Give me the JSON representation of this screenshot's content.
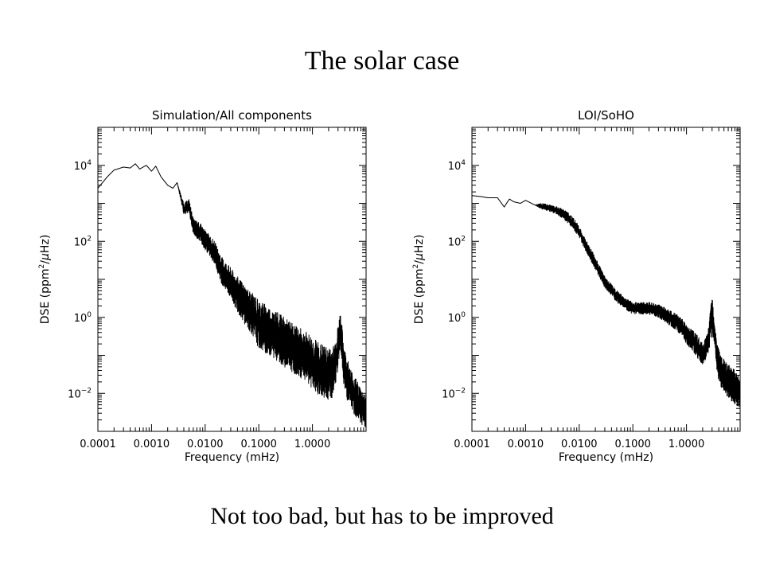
{
  "slide": {
    "title": "The solar case",
    "caption": "Not too bad, but has to be improved"
  },
  "chart_data": [
    {
      "type": "line",
      "title": "Simulation/All components",
      "xlabel": "Frequency (mHz)",
      "ylabel_base": "DSE (ppm",
      "ylabel_sup": "2",
      "ylabel_tail": "/",
      "ylabel_mu": "μ",
      "ylabel_end": "Hz)",
      "xscale": "log",
      "yscale": "log",
      "xlim": [
        0.0001,
        10
      ],
      "ylim": [
        0.001,
        100000
      ],
      "grid": false,
      "x_ticks": [
        {
          "value": 0.0001,
          "label": "0.0001"
        },
        {
          "value": 0.001,
          "label": "0.0010"
        },
        {
          "value": 0.01,
          "label": "0.0100"
        },
        {
          "value": 0.1,
          "label": "0.1000"
        },
        {
          "value": 1,
          "label": "1.0000"
        }
      ],
      "y_ticks": [
        {
          "value": 10000,
          "base": "10",
          "exp": "4"
        },
        {
          "value": 100,
          "base": "10",
          "exp": "2"
        },
        {
          "value": 1,
          "base": "10",
          "exp": "0"
        },
        {
          "value": 0.01,
          "base": "10",
          "exp": "−2"
        }
      ],
      "series": [
        {
          "x": [
            0.0001,
            0.00015,
            0.0002,
            0.0003,
            0.0004,
            0.0005,
            0.0006,
            0.0008,
            0.001,
            0.0012,
            0.0015,
            0.002,
            0.0025,
            0.003,
            0.004,
            0.005,
            0.006,
            0.008,
            0.01,
            0.015,
            0.02,
            0.03,
            0.05,
            0.08,
            0.1,
            0.2,
            0.3,
            0.5,
            0.8,
            1,
            1.5,
            2,
            2.5,
            3,
            3.3,
            3.6,
            4,
            5,
            7,
            10
          ],
          "y": [
            2500,
            5000,
            7500,
            9000,
            8500,
            11000,
            8000,
            10000,
            7000,
            9500,
            5000,
            3000,
            2500,
            3500,
            1000,
            1300,
            400,
            300,
            200,
            100,
            40,
            20,
            8,
            4,
            3,
            1.5,
            1,
            0.6,
            0.4,
            0.3,
            0.2,
            0.15,
            0.2,
            0.6,
            1.5,
            0.5,
            0.15,
            0.05,
            0.02,
            0.008
          ],
          "y_low": [
            2500,
            5000,
            7500,
            9000,
            8500,
            11000,
            8000,
            10000,
            7000,
            9500,
            5000,
            3000,
            2500,
            3500,
            500,
            600,
            150,
            100,
            60,
            25,
            8,
            3,
            0.8,
            0.3,
            0.15,
            0.08,
            0.05,
            0.03,
            0.02,
            0.012,
            0.008,
            0.006,
            0.008,
            0.04,
            0.2,
            0.04,
            0.01,
            0.004,
            0.002,
            0.001
          ]
        }
      ]
    },
    {
      "type": "line",
      "title": "LOI/SoHO",
      "xlabel": "Frequency (mHz)",
      "ylabel_base": "DSE (ppm",
      "ylabel_sup": "2",
      "ylabel_tail": "/",
      "ylabel_mu": "μ",
      "ylabel_end": "Hz)",
      "xscale": "log",
      "yscale": "log",
      "xlim": [
        0.0001,
        10
      ],
      "ylim": [
        0.001,
        100000
      ],
      "grid": false,
      "x_ticks": [
        {
          "value": 0.0001,
          "label": "0.0001"
        },
        {
          "value": 0.001,
          "label": "0.0010"
        },
        {
          "value": 0.01,
          "label": "0.0100"
        },
        {
          "value": 0.1,
          "label": "0.1000"
        },
        {
          "value": 1,
          "label": "1.0000"
        }
      ],
      "y_ticks": [
        {
          "value": 10000,
          "base": "10",
          "exp": "4"
        },
        {
          "value": 100,
          "base": "10",
          "exp": "2"
        },
        {
          "value": 1,
          "base": "10",
          "exp": "0"
        },
        {
          "value": 0.01,
          "base": "10",
          "exp": "−2"
        }
      ],
      "series": [
        {
          "x": [
            0.0001,
            0.00015,
            0.0002,
            0.0003,
            0.0004,
            0.0005,
            0.0006,
            0.0008,
            0.001,
            0.0015,
            0.002,
            0.003,
            0.004,
            0.005,
            0.006,
            0.008,
            0.01,
            0.015,
            0.02,
            0.03,
            0.05,
            0.08,
            0.1,
            0.15,
            0.2,
            0.3,
            0.5,
            0.8,
            1,
            1.5,
            2,
            2.5,
            3,
            3.3,
            3.6,
            4,
            5,
            7,
            10
          ],
          "y": [
            1600,
            1500,
            1400,
            1400,
            800,
            1300,
            1100,
            1000,
            1200,
            900,
            1000,
            900,
            800,
            700,
            600,
            400,
            250,
            80,
            40,
            12,
            5,
            3,
            2.5,
            2.5,
            2.5,
            2.2,
            1.5,
            1,
            0.6,
            0.4,
            0.2,
            0.4,
            5,
            1,
            0.3,
            0.15,
            0.08,
            0.05,
            0.03
          ],
          "y_low": [
            1600,
            1500,
            1400,
            1400,
            800,
            1300,
            1100,
            1000,
            1200,
            900,
            700,
            600,
            500,
            400,
            300,
            200,
            120,
            40,
            18,
            6,
            2.5,
            1.5,
            1.2,
            1.2,
            1.2,
            1,
            0.6,
            0.35,
            0.2,
            0.1,
            0.05,
            0.1,
            0.3,
            0.2,
            0.05,
            0.02,
            0.01,
            0.006,
            0.004
          ]
        }
      ]
    }
  ]
}
